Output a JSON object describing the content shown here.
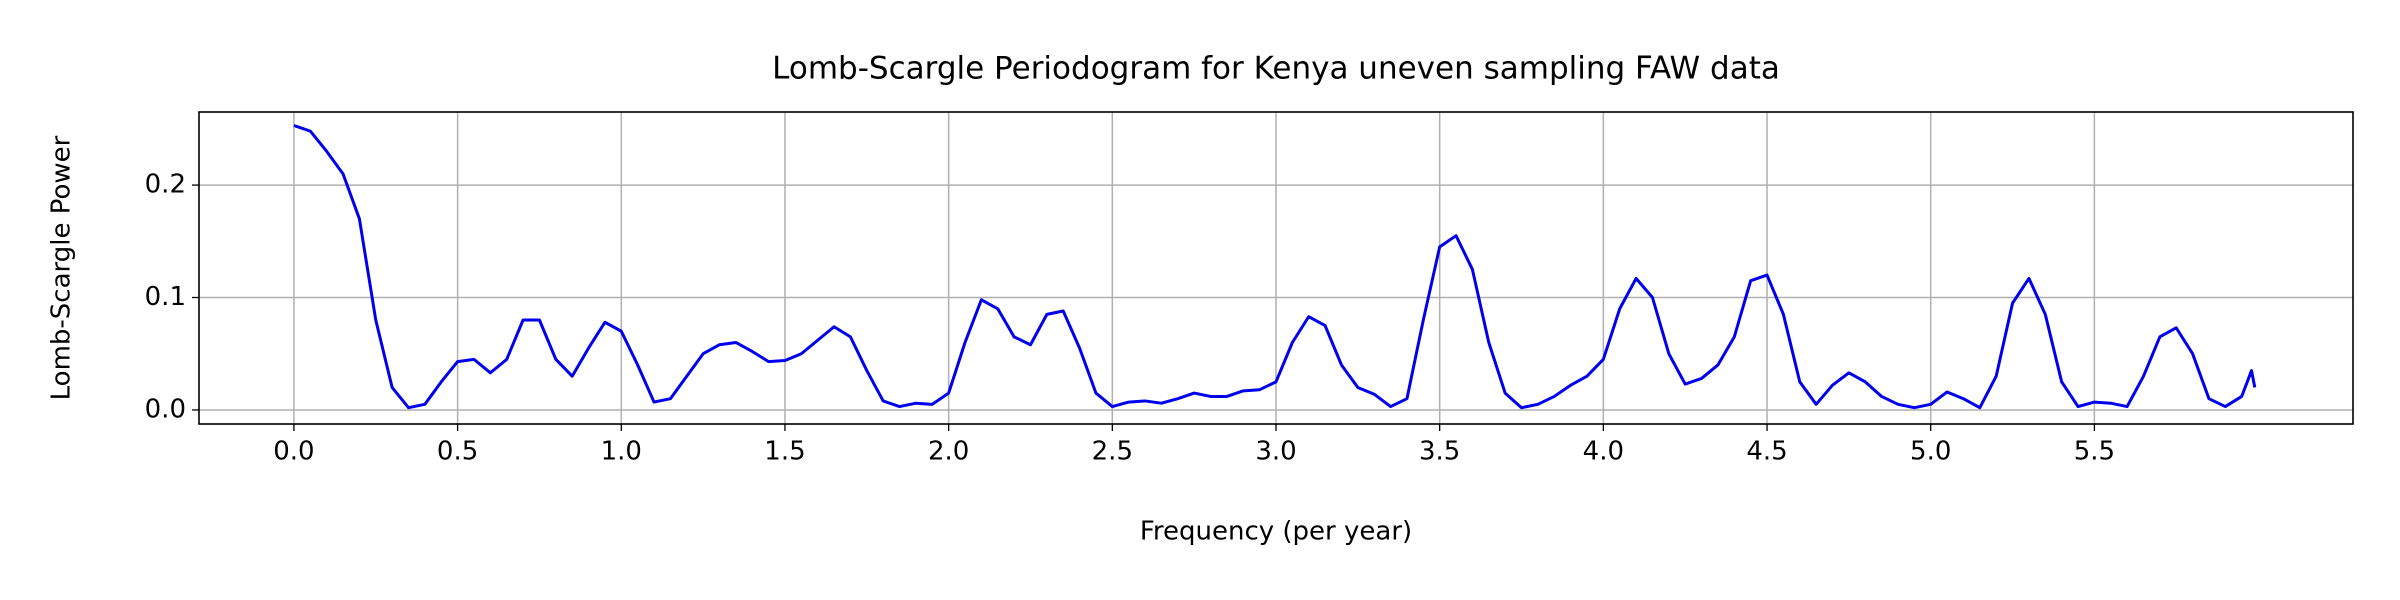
{
  "chart_data": {
    "type": "line",
    "title": "Lomb-Scargle Periodogram for Kenya uneven sampling FAW data",
    "xlabel": "Frequency (per year)",
    "ylabel": "Lomb-Scargle Power",
    "color": "#0000ee",
    "grid": true,
    "x": [
      0.0,
      0.05,
      0.1,
      0.15,
      0.2,
      0.25,
      0.3,
      0.35,
      0.4,
      0.45,
      0.5,
      0.55,
      0.6,
      0.65,
      0.7,
      0.75,
      0.8,
      0.85,
      0.9,
      0.95,
      1.0,
      1.05,
      1.1,
      1.15,
      1.2,
      1.25,
      1.3,
      1.35,
      1.4,
      1.45,
      1.5,
      1.55,
      1.6,
      1.65,
      1.7,
      1.75,
      1.8,
      1.85,
      1.9,
      1.95,
      2.0,
      2.05,
      2.1,
      2.15,
      2.2,
      2.25,
      2.3,
      2.35,
      2.4,
      2.45,
      2.5,
      2.55,
      2.6,
      2.65,
      2.7,
      2.75,
      2.8,
      2.85,
      2.9,
      2.95,
      3.0,
      3.05,
      3.1,
      3.15,
      3.2,
      3.25,
      3.3,
      3.35,
      3.4,
      3.45,
      3.5,
      3.55,
      3.6,
      3.65,
      3.7,
      3.75,
      3.8,
      3.85,
      3.9,
      3.95,
      4.0,
      4.05,
      4.1,
      4.15,
      4.2,
      4.25,
      4.3,
      4.35,
      4.4,
      4.45,
      4.5,
      4.55,
      4.6,
      4.65,
      4.7,
      4.75,
      4.8,
      4.85,
      4.9,
      4.95,
      5.0,
      5.05,
      5.1,
      5.15,
      5.2,
      5.25,
      5.3,
      5.35,
      5.4,
      5.45,
      5.5,
      5.55,
      5.6,
      5.65,
      5.7,
      5.75,
      5.8,
      5.85,
      5.9,
      5.95,
      5.98,
      5.99
    ],
    "values": [
      0.253,
      0.248,
      0.23,
      0.21,
      0.17,
      0.08,
      0.02,
      0.002,
      0.005,
      0.025,
      0.043,
      0.045,
      0.033,
      0.045,
      0.08,
      0.08,
      0.045,
      0.03,
      0.055,
      0.078,
      0.07,
      0.04,
      0.007,
      0.01,
      0.03,
      0.05,
      0.058,
      0.06,
      0.052,
      0.043,
      0.044,
      0.05,
      0.062,
      0.074,
      0.065,
      0.035,
      0.008,
      0.003,
      0.006,
      0.005,
      0.015,
      0.06,
      0.098,
      0.09,
      0.065,
      0.058,
      0.085,
      0.088,
      0.055,
      0.015,
      0.003,
      0.007,
      0.008,
      0.006,
      0.01,
      0.015,
      0.012,
      0.012,
      0.017,
      0.018,
      0.025,
      0.06,
      0.083,
      0.075,
      0.04,
      0.02,
      0.014,
      0.003,
      0.01,
      0.08,
      0.145,
      0.155,
      0.125,
      0.06,
      0.015,
      0.002,
      0.005,
      0.012,
      0.022,
      0.03,
      0.045,
      0.09,
      0.117,
      0.1,
      0.05,
      0.023,
      0.028,
      0.04,
      0.065,
      0.115,
      0.12,
      0.085,
      0.025,
      0.005,
      0.022,
      0.033,
      0.025,
      0.012,
      0.005,
      0.002,
      0.005,
      0.016,
      0.01,
      0.002,
      0.03,
      0.095,
      0.117,
      0.085,
      0.025,
      0.003,
      0.007,
      0.006,
      0.003,
      0.03,
      0.065,
      0.073,
      0.05,
      0.01,
      0.003,
      0.012,
      0.035,
      0.02
    ],
    "xlim": [
      -0.29,
      6.29
    ],
    "ylim": [
      -0.0125,
      0.265
    ],
    "xticks": [
      {
        "value": 0,
        "label": "0.0"
      },
      0.5,
      {
        "value": 1,
        "label": "1.0"
      },
      1.5,
      {
        "value": 2,
        "label": "2.0"
      },
      2.5,
      {
        "value": 3,
        "label": "3.0"
      },
      3.5,
      {
        "value": 4,
        "label": "4.0"
      },
      4.5,
      {
        "value": 5,
        "label": "5.0"
      },
      5.5
    ],
    "yticks": [
      {
        "value": 0,
        "label": "0.0"
      },
      0.1,
      0.2
    ]
  }
}
